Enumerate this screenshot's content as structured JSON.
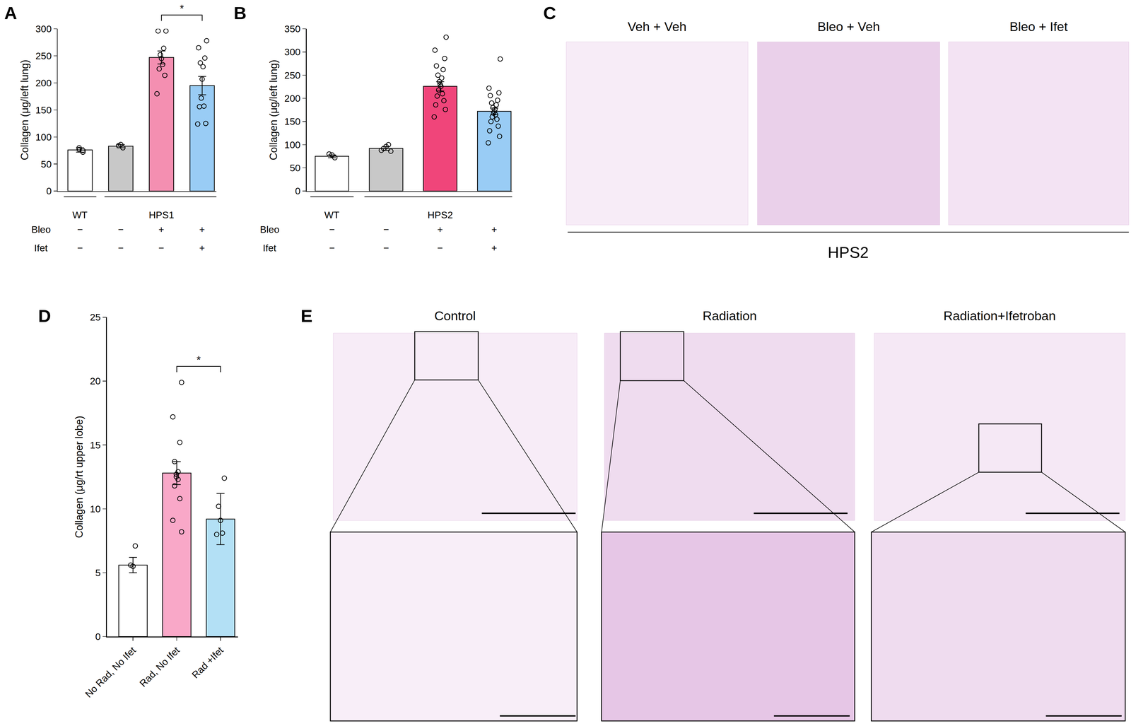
{
  "chart_data": [
    {
      "type": "bar",
      "panel": "A",
      "ylabel": "Collagen (μg/left lung)",
      "categories": [
        null,
        null,
        null,
        null
      ],
      "values": [
        76,
        83,
        247,
        195
      ],
      "errors": [
        4,
        3,
        12,
        17
      ],
      "points": [
        [
          72,
          77,
          80,
          75
        ],
        [
          80,
          86,
          84
        ],
        [
          296,
          296,
          264,
          252,
          245,
          234,
          226,
          214,
          180
        ],
        [
          278,
          265,
          246,
          237,
          230,
          207,
          172,
          157,
          156,
          125,
          124
        ]
      ],
      "colors": [
        "#ffffff",
        "#c8c8c8",
        "#f48fb1",
        "#99ccf5"
      ],
      "ylim": [
        0,
        300
      ],
      "yticks": [
        0,
        50,
        100,
        150,
        200,
        250,
        300
      ],
      "grid": false,
      "tick_labels": "y",
      "significance": [
        {
          "from": 2,
          "to": 3,
          "label": "*"
        }
      ],
      "groups": [
        {
          "label": "WT",
          "from": 0,
          "to": 0
        },
        {
          "label": "HPS1",
          "from": 1,
          "to": 3
        }
      ],
      "conditions": [
        {
          "name": "Bleo",
          "marks": [
            "−",
            "−",
            "+",
            "+"
          ]
        },
        {
          "name": "Ifet",
          "marks": [
            "−",
            "−",
            "−",
            "+"
          ]
        }
      ]
    },
    {
      "type": "bar",
      "panel": "B",
      "ylabel": "Collagen (μg/left lung)",
      "categories": [
        null,
        null,
        null,
        null
      ],
      "values": [
        75,
        92,
        226,
        172
      ],
      "errors": [
        3,
        4,
        10,
        7
      ],
      "points": [
        [
          72,
          78,
          80
        ],
        [
          86,
          92,
          96,
          100,
          88
        ],
        [
          332,
          304,
          286,
          270,
          262,
          250,
          244,
          236,
          230,
          226,
          218,
          210,
          205,
          195,
          186,
          176,
          160
        ],
        [
          285,
          222,
          212,
          206,
          196,
          190,
          186,
          180,
          176,
          171,
          168,
          165,
          160,
          155,
          150,
          140,
          130,
          118,
          104
        ]
      ],
      "colors": [
        "#ffffff",
        "#c8c8c8",
        "#f0457a",
        "#99ccf5"
      ],
      "ylim": [
        0,
        350
      ],
      "yticks": [
        0,
        50,
        100,
        150,
        200,
        250,
        300,
        350
      ],
      "grid": false,
      "tick_labels": "y",
      "groups": [
        {
          "label": "WT",
          "from": 0,
          "to": 0
        },
        {
          "label": "HPS2",
          "from": 1,
          "to": 3
        }
      ],
      "conditions": [
        {
          "name": "Bleo",
          "marks": [
            "−",
            "−",
            "+",
            "+"
          ]
        },
        {
          "name": "Ifet",
          "marks": [
            "−",
            "−",
            "−",
            "+"
          ]
        }
      ]
    },
    {
      "type": "bar",
      "panel": "D",
      "ylabel": "Collagen (μg/rt upper lobe)",
      "categories": [
        "No Rad, No Ifet",
        "Rad, No Ifet",
        "Rad +Ifet"
      ],
      "values": [
        5.6,
        12.8,
        9.2
      ],
      "errors": [
        0.6,
        0.9,
        2.0
      ],
      "points": [
        [
          7.1,
          5.5,
          5.6
        ],
        [
          19.9,
          17.2,
          15.2,
          13.7,
          12.9,
          12.7,
          12.5,
          12.3,
          11.8,
          10.8,
          9.1,
          8.2
        ],
        [
          12.4,
          10.2,
          9.1,
          8.1,
          8.0
        ]
      ],
      "colors": [
        "#ffffff",
        "#f9a8c8",
        "#b3e0f5"
      ],
      "ylim": [
        0,
        25
      ],
      "yticks": [
        0,
        5,
        10,
        15,
        20,
        25
      ],
      "grid": false,
      "significance": [
        {
          "from": 1,
          "to": 2,
          "label": "*"
        }
      ]
    }
  ],
  "image_panels": [
    {
      "panel": "C",
      "titles": [
        "Veh + Veh",
        "Bleo + Veh",
        "Bleo + Ifet"
      ],
      "caption": "HPS2"
    },
    {
      "panel": "E",
      "titles": [
        "Control",
        "Radiation",
        "Radiation+Ifetroban"
      ]
    }
  ]
}
